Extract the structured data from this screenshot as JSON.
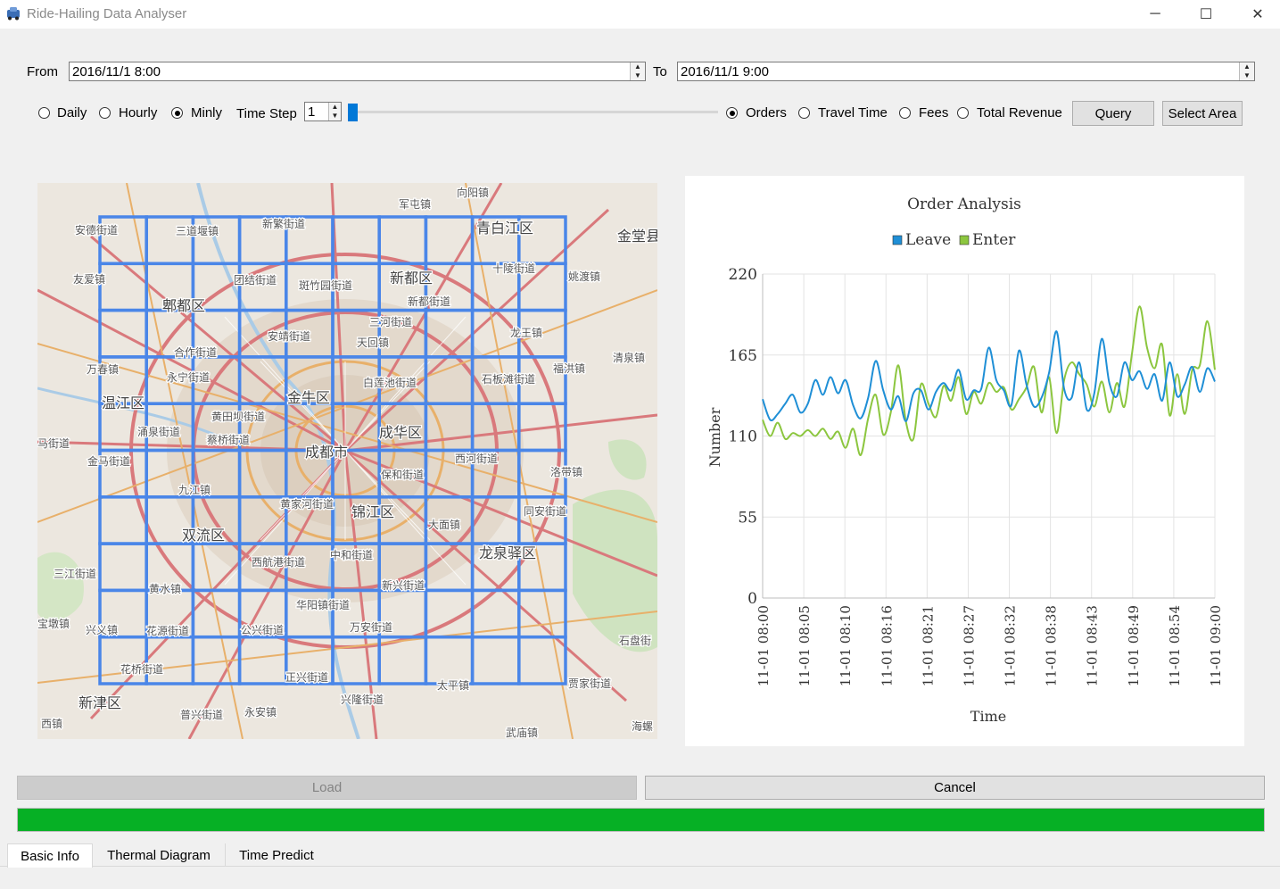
{
  "window": {
    "title": "Ride-Hailing Data Analyser",
    "icon": "car-icon",
    "controls": {
      "minimize": "─",
      "maximize": "☐",
      "close": "✕"
    }
  },
  "range": {
    "from_label": "From",
    "from_value": "2016/11/1 8:00",
    "to_label": "To",
    "to_value": "2016/11/1 9:00"
  },
  "granularity": {
    "options": [
      "Daily",
      "Hourly",
      "Minly"
    ],
    "selected": "Minly",
    "time_step_label": "Time Step",
    "time_step_value": "1",
    "slider_level": 0
  },
  "metric": {
    "options": [
      "Orders",
      "Travel Time",
      "Fees",
      "Total Revenue"
    ],
    "selected": "Orders"
  },
  "buttons": {
    "query": "Query",
    "select_area": "Select Area",
    "load": "Load",
    "cancel": "Cancel"
  },
  "map": {
    "grid": {
      "cols": 10,
      "rows": 10
    },
    "labels": [
      "军屯镇",
      "向阳镇",
      "安德街道",
      "三道堰镇",
      "新繁街道",
      "青白江区",
      "金堂县",
      "友爱镇",
      "团结街道",
      "斑竹园街道",
      "新都区",
      "新都街道",
      "姚渡镇",
      "郫都区",
      "三河街道",
      "安靖街道",
      "天回镇",
      "龙王镇",
      "合作街道",
      "万春镇",
      "永宁街道",
      "白莲池街道",
      "石板滩街道",
      "福洪镇",
      "清泉镇",
      "温江区",
      "金牛区",
      "黄田坝街道",
      "涌泉街道",
      "蔡桥街道",
      "成都市",
      "成华区",
      "西河街道",
      "马街道",
      "金马街道",
      "保和街道",
      "洛带镇",
      "九江镇",
      "黄家河街道",
      "锦江区",
      "同安街道",
      "大面镇",
      "双流区",
      "西航港街道",
      "中和街道",
      "龙泉驿区",
      "三江街道",
      "黄水镇",
      "新兴街道",
      "华阳镇街道",
      "宝墩镇",
      "兴义镇",
      "花源街道",
      "公兴街道",
      "万安街道",
      "石盘街",
      "花桥街道",
      "正兴街道",
      "兴隆街道",
      "太平镇",
      "贾家街道",
      "新津区",
      "普兴街道",
      "永安镇",
      "西镇",
      "海螺",
      "武庙镇",
      "十陵街道"
    ]
  },
  "colors": {
    "accent_blue": "#4a86e8",
    "progress_green": "#06b025",
    "leave": "#1f8fd6",
    "enter": "#8cc63f"
  },
  "progress": {
    "value": 1.0
  },
  "chart_data": {
    "type": "line",
    "title": "Order Analysis",
    "xlabel": "Time",
    "ylabel": "Number",
    "ylim": [
      0,
      220
    ],
    "yticks": [
      0,
      55,
      110,
      165,
      220
    ],
    "xticks": [
      "11-01 08:00",
      "11-01 08:05",
      "11-01 08:10",
      "11-01 08:16",
      "11-01 08:21",
      "11-01 08:27",
      "11-01 08:32",
      "11-01 08:38",
      "11-01 08:43",
      "11-01 08:49",
      "11-01 08:54",
      "11-01 09:00"
    ],
    "x_minutes": [
      0,
      1,
      2,
      3,
      4,
      5,
      6,
      7,
      8,
      9,
      10,
      11,
      12,
      13,
      14,
      15,
      16,
      17,
      18,
      19,
      20,
      21,
      22,
      23,
      24,
      25,
      26,
      27,
      28,
      29,
      30,
      31,
      32,
      33,
      34,
      35,
      36,
      37,
      38,
      39,
      40,
      41,
      42,
      43,
      44,
      45,
      46,
      47,
      48,
      49,
      50,
      51,
      52,
      53,
      54,
      55,
      56,
      57,
      58,
      59,
      60
    ],
    "legend_position": "top",
    "grid": true,
    "series": [
      {
        "name": "Leave",
        "values": [
          135,
          121,
          125,
          132,
          138,
          126,
          132,
          148,
          138,
          150,
          139,
          148,
          131,
          122,
          136,
          161,
          141,
          128,
          137,
          120,
          139,
          141,
          128,
          140,
          146,
          141,
          155,
          135,
          141,
          142,
          170,
          148,
          141,
          131,
          168,
          145,
          130,
          136,
          153,
          181,
          142,
          136,
          160,
          128,
          139,
          176,
          146,
          137,
          160,
          148,
          154,
          142,
          152,
          134,
          160,
          137,
          145,
          157,
          140,
          156,
          147
        ]
      },
      {
        "name": "Enter",
        "values": [
          121,
          110,
          119,
          108,
          112,
          110,
          114,
          110,
          115,
          108,
          113,
          102,
          115,
          97,
          122,
          138,
          111,
          126,
          158,
          120,
          108,
          145,
          132,
          123,
          144,
          134,
          150,
          125,
          140,
          132,
          146,
          140,
          143,
          128,
          135,
          143,
          157,
          126,
          150,
          112,
          148,
          160,
          152,
          145,
          130,
          147,
          126,
          146,
          130,
          166,
          198,
          170,
          156,
          172,
          124,
          152,
          125,
          155,
          158,
          188,
          155
        ]
      }
    ]
  },
  "tabs": [
    {
      "label": "Basic Info",
      "active": true
    },
    {
      "label": "Thermal Diagram",
      "active": false
    },
    {
      "label": "Time Predict",
      "active": false
    }
  ]
}
